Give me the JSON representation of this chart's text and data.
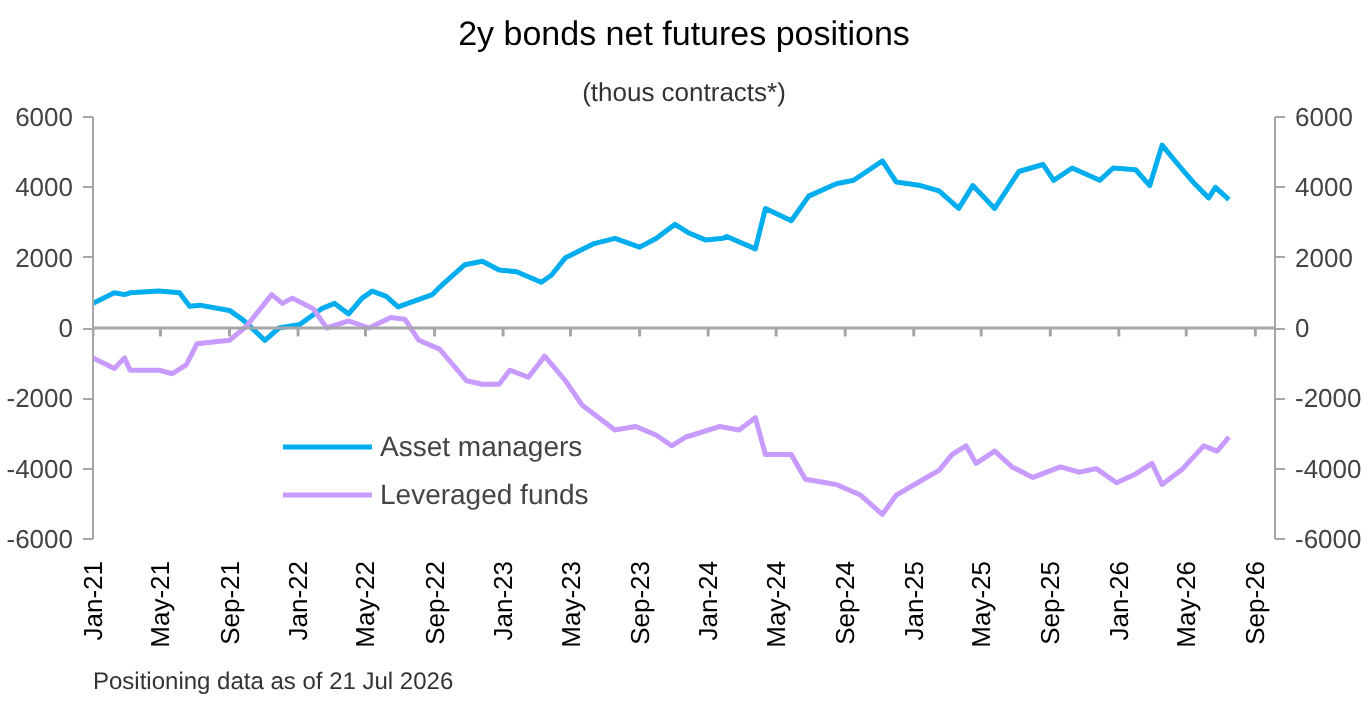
{
  "chart_data": {
    "type": "line",
    "title": "2y bonds net futures positions",
    "subtitle": "(thous contracts*)",
    "annotations": [
      "Positioning data as of 21 Jul 2026"
    ],
    "xlim": [
      "2021-01-01",
      "2026-10-06"
    ],
    "xticks": [
      {
        "value": "2021-01-01",
        "label": "Jan-21"
      },
      {
        "value": "2021-05-01",
        "label": "May-21"
      },
      {
        "value": "2021-09-01",
        "label": "Sep-21"
      },
      {
        "value": "2022-01-01",
        "label": "Jan-22"
      },
      {
        "value": "2022-05-01",
        "label": "May-22"
      },
      {
        "value": "2022-09-01",
        "label": "Sep-22"
      },
      {
        "value": "2023-01-01",
        "label": "Jan-23"
      },
      {
        "value": "2023-05-01",
        "label": "May-23"
      },
      {
        "value": "2023-09-01",
        "label": "Sep-23"
      },
      {
        "value": "2024-01-01",
        "label": "Jan-24"
      },
      {
        "value": "2024-05-01",
        "label": "May-24"
      },
      {
        "value": "2024-09-01",
        "label": "Sep-24"
      },
      {
        "value": "2025-01-01",
        "label": "Jan-25"
      },
      {
        "value": "2025-05-01",
        "label": "May-25"
      },
      {
        "value": "2025-09-01",
        "label": "Sep-25"
      },
      {
        "value": "2026-01-01",
        "label": "Jan-26"
      },
      {
        "value": "2026-05-01",
        "label": "May-26"
      },
      {
        "value": "2026-09-01",
        "label": "Sep-26"
      }
    ],
    "ylim": [
      -6000,
      6000
    ],
    "yticks": [
      -6000,
      -4000,
      -2000,
      0,
      2000,
      4000,
      6000
    ],
    "y2lim": [
      -6000,
      6000
    ],
    "y2ticks": [
      -6000,
      -4000,
      -2000,
      0,
      2000,
      4000,
      6000
    ],
    "ref_lines": [
      {
        "axis": "y",
        "value": 0,
        "label": null,
        "color": "#a6a6a6"
      }
    ],
    "grid": false,
    "legend": "bottom left",
    "marker": "none",
    "line_style": "solid",
    "series": [
      {
        "name": "Asset managers",
        "color": "#00adef",
        "x": [
          "2021-01-01",
          "2021-02-08",
          "2021-02-26",
          "2021-03-08",
          "2021-04-28",
          "2021-06-04",
          "2021-06-22",
          "2021-07-10",
          "2021-09-01",
          "2021-09-25",
          "2021-11-03",
          "2021-11-28",
          "2022-01-04",
          "2022-02-12",
          "2022-03-07",
          "2022-04-01",
          "2022-04-25",
          "2022-05-13",
          "2022-06-07",
          "2022-06-28",
          "2022-08-28",
          "2022-09-16",
          "2022-10-25",
          "2022-11-25",
          "2022-12-25",
          "2023-01-25",
          "2023-03-10",
          "2023-03-28",
          "2023-04-22",
          "2023-06-12",
          "2023-07-19",
          "2023-09-01",
          "2023-10-01",
          "2023-11-03",
          "2023-11-28",
          "2023-12-28",
          "2024-01-28",
          "2024-02-03",
          "2024-03-25",
          "2024-04-12",
          "2024-05-28",
          "2024-06-28",
          "2024-08-16",
          "2024-09-16",
          "2024-11-06",
          "2024-12-01",
          "2025-01-13",
          "2025-02-15",
          "2025-03-22",
          "2025-04-16",
          "2025-05-25",
          "2025-07-07",
          "2025-08-19",
          "2025-09-07",
          "2025-10-10",
          "2025-11-28",
          "2025-12-22",
          "2026-01-31",
          "2026-02-25",
          "2026-03-19",
          "2026-04-19",
          "2026-05-16",
          "2026-06-10",
          "2026-06-22",
          "2026-07-16"
        ],
        "values": [
          700,
          1000,
          950,
          1000,
          1050,
          1000,
          620,
          650,
          500,
          230,
          -350,
          0,
          100,
          550,
          700,
          400,
          850,
          1050,
          900,
          600,
          950,
          1250,
          1800,
          1900,
          1650,
          1600,
          1300,
          1500,
          2000,
          2400,
          2550,
          2300,
          2550,
          2950,
          2700,
          2500,
          2550,
          2600,
          2250,
          3400,
          3050,
          3750,
          4100,
          4200,
          4750,
          4150,
          4050,
          3900,
          3400,
          4050,
          3400,
          4450,
          4650,
          4200,
          4550,
          4200,
          4550,
          4500,
          4050,
          5200,
          4600,
          4100,
          3700,
          4000,
          3650
        ]
      },
      {
        "name": "Leveraged funds",
        "color": "#c79bff",
        "x": [
          "2021-01-01",
          "2021-02-08",
          "2021-02-26",
          "2021-03-08",
          "2021-04-28",
          "2021-05-22",
          "2021-06-16",
          "2021-07-05",
          "2021-09-01",
          "2021-10-01",
          "2021-11-15",
          "2021-12-04",
          "2021-12-22",
          "2022-01-28",
          "2022-02-21",
          "2022-04-01",
          "2022-05-07",
          "2022-06-15",
          "2022-07-10",
          "2022-08-04",
          "2022-09-10",
          "2022-10-28",
          "2022-11-25",
          "2022-12-25",
          "2023-01-13",
          "2023-02-15",
          "2023-03-16",
          "2023-04-22",
          "2023-05-22",
          "2023-07-19",
          "2023-08-25",
          "2023-10-01",
          "2023-10-28",
          "2023-11-22",
          "2023-12-03",
          "2024-01-22",
          "2024-02-25",
          "2024-03-25",
          "2024-04-12",
          "2024-05-28",
          "2024-06-22",
          "2024-08-16",
          "2024-09-28",
          "2024-11-06",
          "2024-12-01",
          "2025-01-13",
          "2025-02-15",
          "2025-03-10",
          "2025-04-04",
          "2025-04-22",
          "2025-05-25",
          "2025-06-25",
          "2025-08-01",
          "2025-09-19",
          "2025-10-22",
          "2025-11-22",
          "2025-12-28",
          "2026-01-31",
          "2026-03-01",
          "2026-03-19",
          "2026-04-25",
          "2026-06-01",
          "2026-06-25",
          "2026-07-16"
        ],
        "values": [
          -850,
          -1150,
          -850,
          -1200,
          -1200,
          -1300,
          -1050,
          -450,
          -350,
          50,
          950,
          700,
          850,
          550,
          0,
          200,
          0,
          300,
          250,
          -350,
          -600,
          -1500,
          -1600,
          -1600,
          -1200,
          -1400,
          -800,
          -1500,
          -2200,
          -2900,
          -2800,
          -3050,
          -3350,
          -3100,
          -3050,
          -2800,
          -2900,
          -2550,
          -3600,
          -3600,
          -4300,
          -4450,
          -4750,
          -5300,
          -4750,
          -4350,
          -4050,
          -3600,
          -3350,
          -3850,
          -3500,
          -3950,
          -4250,
          -3950,
          -4100,
          -4000,
          -4400,
          -4150,
          -3850,
          -4450,
          -4000,
          -3350,
          -3500,
          -3100
        ]
      }
    ]
  }
}
